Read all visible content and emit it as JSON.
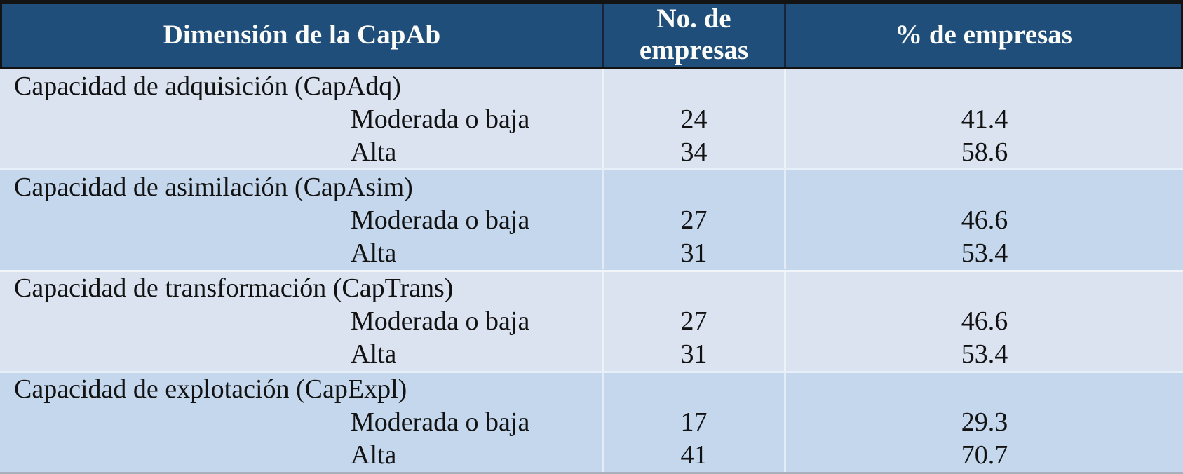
{
  "table": {
    "columns": [
      {
        "label": "Dimensión de la CapAb"
      },
      {
        "label": "No. de empresas"
      },
      {
        "label": "% de empresas"
      }
    ],
    "groups": [
      {
        "title": "Capacidad de adquisición (CapAdq)",
        "rows": [
          {
            "label": "Moderada o baja",
            "n": "24",
            "pct": "41.4"
          },
          {
            "label": "Alta",
            "n": "34",
            "pct": "58.6"
          }
        ]
      },
      {
        "title": "Capacidad de asimilación (CapAsim)",
        "rows": [
          {
            "label": "Moderada o baja",
            "n": "27",
            "pct": "46.6"
          },
          {
            "label": "Alta",
            "n": "31",
            "pct": "53.4"
          }
        ]
      },
      {
        "title": "Capacidad de transformación (CapTrans)",
        "rows": [
          {
            "label": "Moderada o baja",
            "n": "27",
            "pct": "46.6"
          },
          {
            "label": "Alta",
            "n": "31",
            "pct": "53.4"
          }
        ]
      },
      {
        "title": "Capacidad de explotación (CapExpl)",
        "rows": [
          {
            "label": "Moderada o baja",
            "n": "17",
            "pct": "29.3"
          },
          {
            "label": "Alta",
            "n": "41",
            "pct": "70.7"
          }
        ]
      }
    ],
    "colors": {
      "header_bg": "#1F4E7B",
      "header_text": "#FBFBF8",
      "band_light": "#DBE3F1",
      "band_medium": "#C4D7ED",
      "outline_dark": "#131313",
      "bottom_edge": "#A9B0BC",
      "body_text": "#121212"
    }
  },
  "chart_data": {
    "type": "table",
    "title": "Dimensión de la CapAb",
    "columns": [
      "Dimensión de la CapAb",
      "No. de empresas",
      "% de empresas"
    ],
    "rows": [
      [
        "Capacidad de adquisición (CapAdq)",
        "",
        ""
      ],
      [
        "Moderada o baja",
        24,
        41.4
      ],
      [
        "Alta",
        34,
        58.6
      ],
      [
        "Capacidad de asimilación (CapAsim)",
        "",
        ""
      ],
      [
        "Moderada o baja",
        27,
        46.6
      ],
      [
        "Alta",
        31,
        53.4
      ],
      [
        "Capacidad de transformación (CapTrans)",
        "",
        ""
      ],
      [
        "Moderada o baja",
        27,
        46.6
      ],
      [
        "Alta",
        31,
        53.4
      ],
      [
        "Capacidad de explotación (CapExpl)",
        "",
        ""
      ],
      [
        "Moderada o baja",
        17,
        29.3
      ],
      [
        "Alta",
        41,
        70.7
      ]
    ]
  }
}
